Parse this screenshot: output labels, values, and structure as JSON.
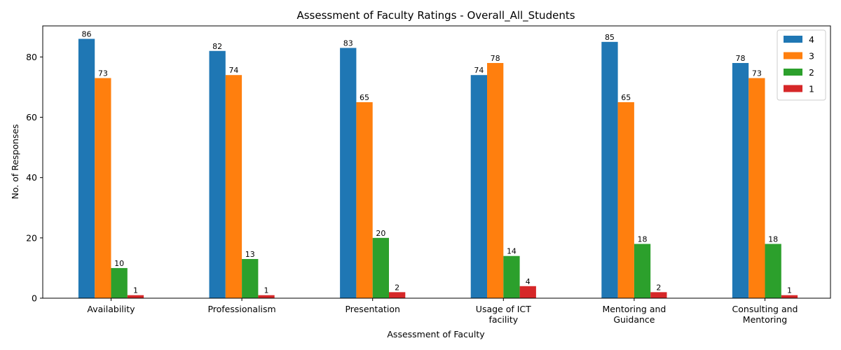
{
  "chart_data": {
    "type": "bar",
    "title": "Assessment of Faculty Ratings - Overall_All_Students",
    "xlabel": "Assessment of Faculty",
    "ylabel": "No. of Responses",
    "categories": [
      [
        "Availability"
      ],
      [
        "Professionalism"
      ],
      [
        "Presentation"
      ],
      [
        "Usage of ICT",
        "facility"
      ],
      [
        "Mentoring and",
        "Guidance"
      ],
      [
        "Consulting and",
        "Mentoring"
      ]
    ],
    "series": [
      {
        "name": "4",
        "color": "#1f77b4",
        "values": [
          86,
          82,
          83,
          74,
          85,
          78
        ]
      },
      {
        "name": "3",
        "color": "#ff7f0e",
        "values": [
          73,
          74,
          65,
          78,
          65,
          73
        ]
      },
      {
        "name": "2",
        "color": "#2ca02c",
        "values": [
          10,
          13,
          20,
          14,
          18,
          18
        ]
      },
      {
        "name": "1",
        "color": "#d62728",
        "values": [
          1,
          1,
          2,
          4,
          2,
          1
        ]
      }
    ],
    "ylim": [
      0,
      90.3
    ],
    "yticks": [
      0,
      20,
      40,
      60,
      80
    ],
    "legend_position": "top-right",
    "grid": false
  }
}
